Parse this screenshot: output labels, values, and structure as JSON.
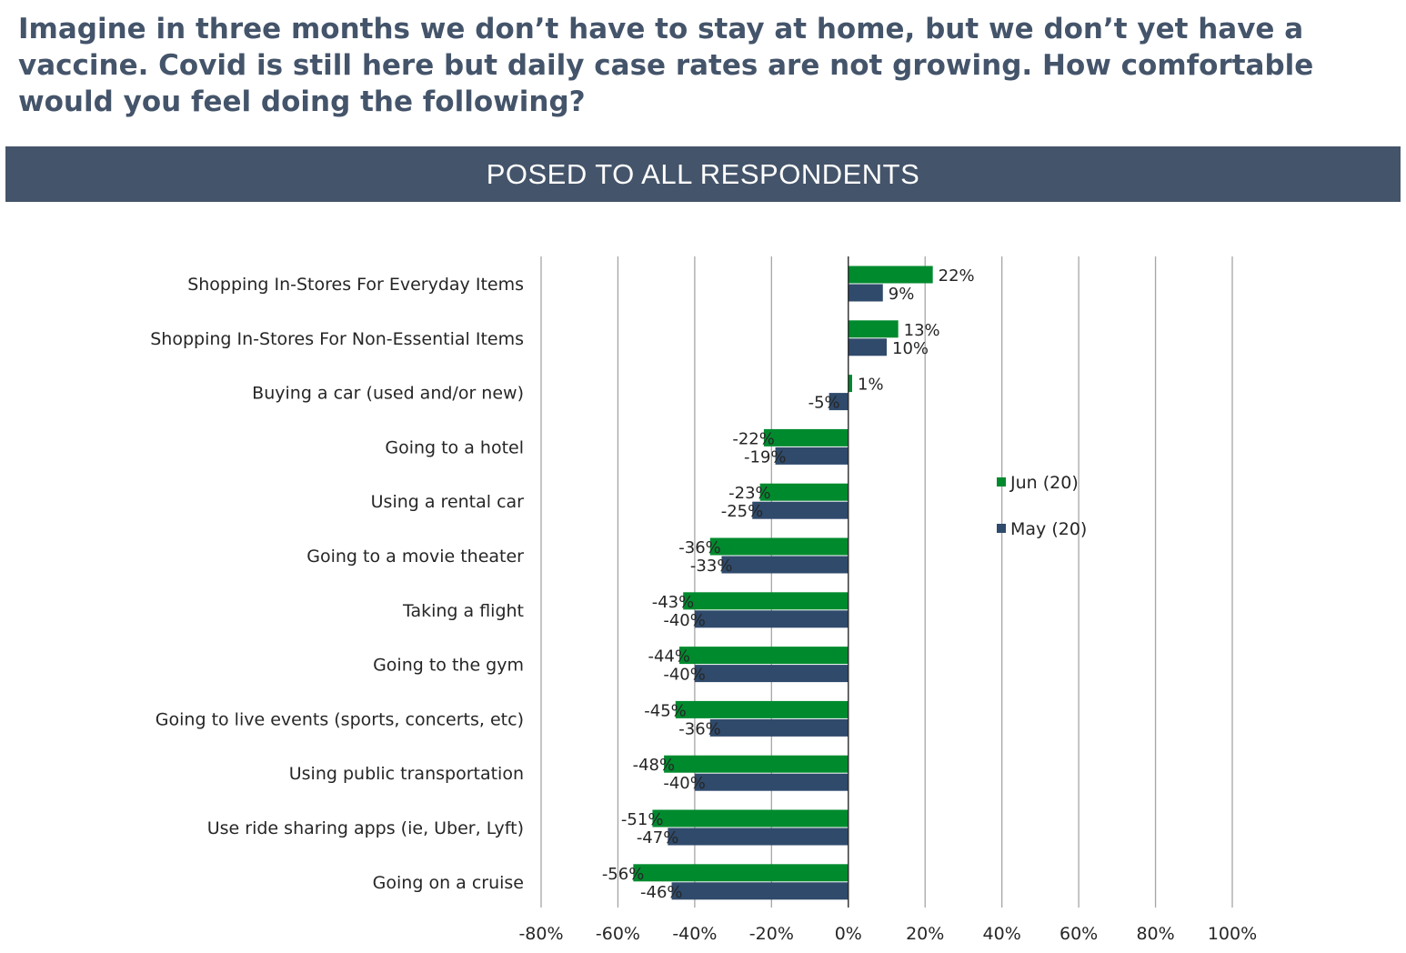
{
  "question": "Imagine in three months we don’t have to stay at home, but we don’t yet have a vaccine. Covid is still here but daily case rates are not growing. How comfortable would you feel doing the following?",
  "banner": "POSED TO ALL RESPONDENTS",
  "colors": {
    "jun": "#008a2e",
    "may": "#2f4a6b",
    "grid": "#a6a6a6",
    "banner": "#44546a",
    "title": "#44546a"
  },
  "chart_data": {
    "type": "bar",
    "orientation": "horizontal",
    "categories": [
      "Shopping In-Stores For Everyday Items",
      "Shopping In-Stores For Non-Essential Items",
      "Buying a car (used and/or new)",
      "Going to a hotel",
      "Using a rental car",
      "Going to a movie theater",
      "Taking a flight",
      "Going to the gym",
      "Going to live events (sports, concerts, etc)",
      "Using public transportation",
      "Use ride sharing apps (ie, Uber, Lyft)",
      "Going on a cruise"
    ],
    "series": [
      {
        "name": "Jun (20)",
        "values": [
          22,
          13,
          1,
          -22,
          -23,
          -36,
          -43,
          -44,
          -45,
          -48,
          -51,
          -56
        ]
      },
      {
        "name": "May (20)",
        "values": [
          9,
          10,
          -5,
          -19,
          -25,
          -33,
          -40,
          -40,
          -36,
          -40,
          -47,
          -46
        ]
      }
    ],
    "xlim": [
      -80,
      100
    ],
    "xticks": [
      "-80%",
      "-60%",
      "-40%",
      "-20%",
      "0%",
      "20%",
      "40%",
      "60%",
      "80%",
      "100%"
    ],
    "value_suffix": "%",
    "grid": "vertical",
    "legend": "right"
  }
}
